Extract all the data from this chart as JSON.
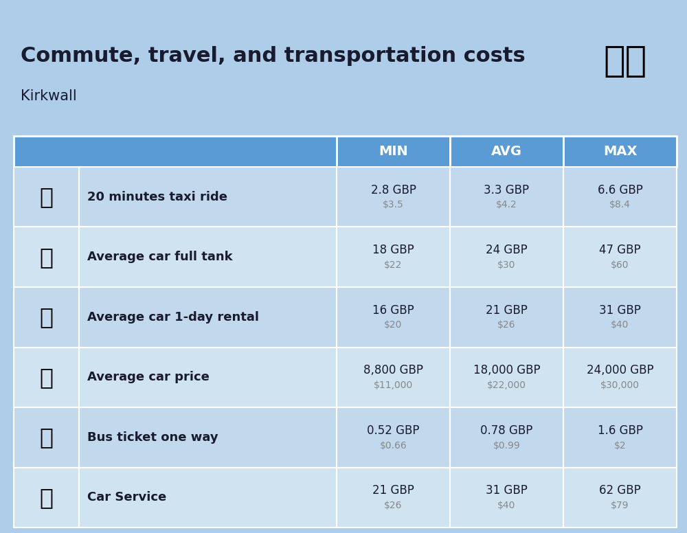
{
  "title": "Commute, travel, and transportation costs",
  "subtitle": "Kirkwall",
  "bg_color": "#aecde8",
  "table_header_color": "#5b9bd5",
  "row_colors_alt": [
    "#c2d9ed",
    "#d0e3f0"
  ],
  "header_text_color": "#ffffff",
  "columns": [
    "MIN",
    "AVG",
    "MAX"
  ],
  "rows": [
    {
      "label": "20 minutes taxi ride",
      "min_gbp": "2.8 GBP",
      "min_usd": "$3.5",
      "avg_gbp": "3.3 GBP",
      "avg_usd": "$4.2",
      "max_gbp": "6.6 GBP",
      "max_usd": "$8.4"
    },
    {
      "label": "Average car full tank",
      "min_gbp": "18 GBP",
      "min_usd": "$22",
      "avg_gbp": "24 GBP",
      "avg_usd": "$30",
      "max_gbp": "47 GBP",
      "max_usd": "$60"
    },
    {
      "label": "Average car 1-day rental",
      "min_gbp": "16 GBP",
      "min_usd": "$20",
      "avg_gbp": "21 GBP",
      "avg_usd": "$26",
      "max_gbp": "31 GBP",
      "max_usd": "$40"
    },
    {
      "label": "Average car price",
      "min_gbp": "8,800 GBP",
      "min_usd": "$11,000",
      "avg_gbp": "18,000 GBP",
      "avg_usd": "$22,000",
      "max_gbp": "24,000 GBP",
      "max_usd": "$30,000"
    },
    {
      "label": "Bus ticket one way",
      "min_gbp": "0.52 GBP",
      "min_usd": "$0.66",
      "avg_gbp": "0.78 GBP",
      "avg_usd": "$0.99",
      "max_gbp": "1.6 GBP",
      "max_usd": "$2"
    },
    {
      "label": "Car Service",
      "min_gbp": "21 GBP",
      "min_usd": "$26",
      "avg_gbp": "31 GBP",
      "avg_usd": "$40",
      "max_gbp": "62 GBP",
      "max_usd": "$79"
    }
  ],
  "row_emojis": [
    "🚕",
    "⛽",
    "🚙",
    "🚗",
    "🚌",
    "🔧"
  ],
  "gbp_color": "#1a1a2e",
  "usd_color": "#888888",
  "label_color": "#1a1a2e",
  "white": "#ffffff",
  "title_fontsize": 22,
  "subtitle_fontsize": 15,
  "header_fontsize": 14,
  "label_fontsize": 13,
  "gbp_fontsize": 12,
  "usd_fontsize": 10
}
